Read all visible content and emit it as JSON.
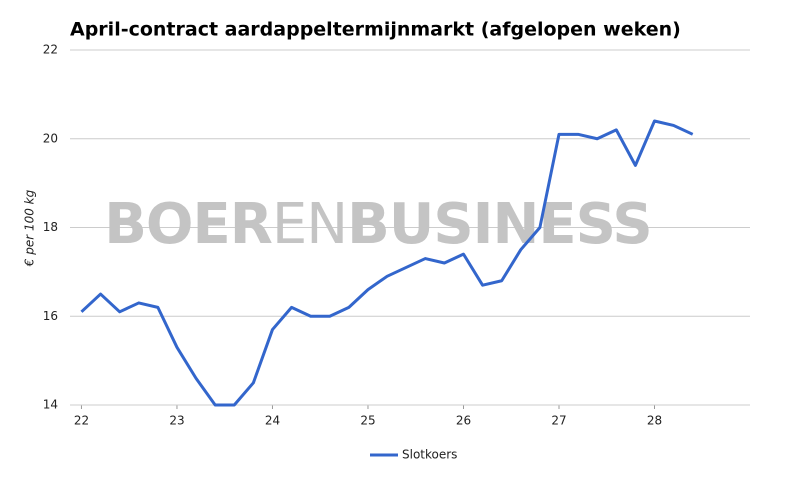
{
  "chart_data": {
    "type": "line",
    "title": "April-contract aardappeltermijnmarkt (afgelopen weken)",
    "y_label": "€ per 100 kg",
    "watermark": [
      "BOER",
      "EN",
      "BUSINESS"
    ],
    "x": [
      22.0,
      22.2,
      22.4,
      22.6,
      22.8,
      23.0,
      23.2,
      23.4,
      23.6,
      23.8,
      24.0,
      24.2,
      24.4,
      24.6,
      24.8,
      25.0,
      25.2,
      25.4,
      25.6,
      25.8,
      26.0,
      26.2,
      26.4,
      26.6,
      26.8,
      27.0,
      27.2,
      27.4,
      27.6,
      27.8,
      28.0,
      28.2,
      28.4
    ],
    "series": [
      {
        "name": "Slotkoers",
        "color": "#3366cc",
        "values": [
          16.1,
          16.5,
          16.1,
          16.3,
          16.2,
          15.3,
          14.6,
          14.0,
          14.0,
          14.5,
          15.7,
          16.2,
          16.0,
          16.0,
          16.2,
          16.6,
          16.9,
          17.1,
          17.3,
          17.2,
          17.4,
          16.7,
          16.8,
          17.5,
          18.0,
          20.1,
          20.1,
          20.0,
          20.2,
          19.4,
          20.4,
          20.3,
          20.1
        ]
      }
    ],
    "xlim": [
      21.88,
      29.0
    ],
    "xticks": [
      22,
      23,
      24,
      25,
      26,
      27,
      28
    ],
    "ylim": [
      14,
      22
    ],
    "yticks": [
      14,
      16,
      18,
      20,
      22
    ],
    "grid": true,
    "legend": "bottom"
  }
}
